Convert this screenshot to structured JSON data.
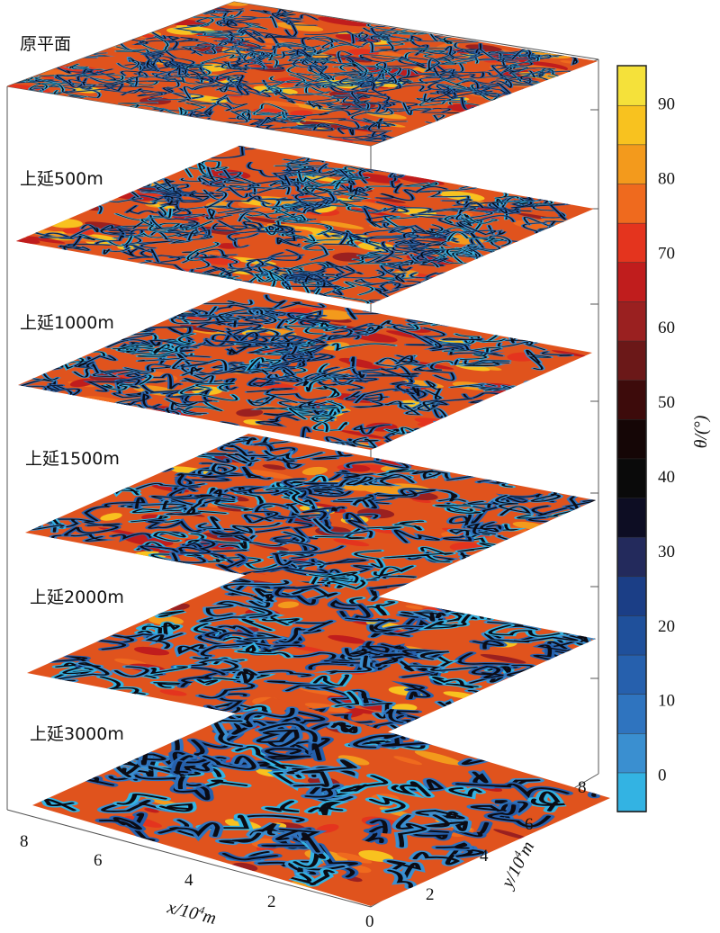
{
  "chart_data": {
    "type": "heatmap",
    "layers": [
      "原平面",
      "上延500m",
      "上延1000m",
      "上延1500m",
      "上延2000m",
      "上延3000m"
    ],
    "x_axis": {
      "label_text": "x/10",
      "label_sup": "4",
      "label_unit": "m",
      "ticks": [
        "8",
        "6",
        "4",
        "2"
      ],
      "range": [
        0,
        8
      ]
    },
    "y_axis": {
      "label_text": "y/10",
      "label_sup": "4",
      "label_unit": "m",
      "ticks": [
        "0",
        "2",
        "4",
        "6",
        "8"
      ],
      "range": [
        0,
        8
      ]
    },
    "colorbar": {
      "label": "θ/(°)",
      "ticks": [
        "90",
        "80",
        "70",
        "60",
        "50",
        "40",
        "30",
        "20",
        "10",
        "0"
      ],
      "range": [
        -5,
        95
      ],
      "colors": [
        "#33b3e3",
        "#3a8fd0",
        "#2f74bf",
        "#2660ad",
        "#1f509b",
        "#1b3e86",
        "#232a5c",
        "#0d0d23",
        "#0a0a0a",
        "#150606",
        "#3d0b0b",
        "#6b1818",
        "#9a2020",
        "#c01d1d",
        "#e4341e",
        "#ef6a1e",
        "#f39a1c",
        "#f8c21f",
        "#f5e13a"
      ]
    }
  }
}
